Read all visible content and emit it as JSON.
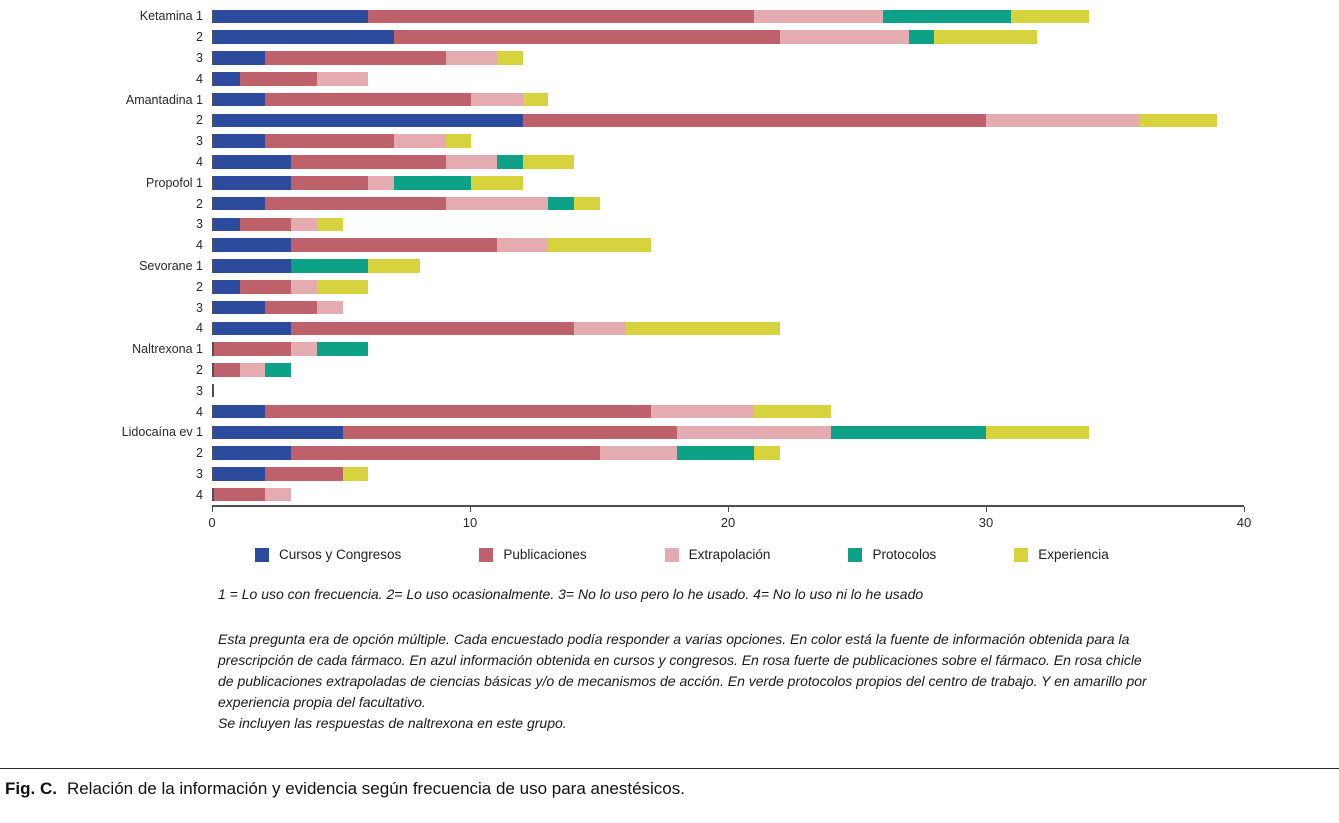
{
  "chart_data": {
    "type": "bar",
    "orientation": "horizontal",
    "stacked": true,
    "title": "",
    "xlabel": "",
    "ylabel": "",
    "xlim": [
      0,
      40
    ],
    "x_ticks": [
      0,
      10,
      20,
      30,
      40
    ],
    "grid": false,
    "legend_position": "bottom",
    "categories": [
      "Ketamina 1",
      "2",
      "3",
      "4",
      "Amantadina 1",
      "2",
      "3",
      "4",
      "Propofol 1",
      "2",
      "3",
      "4",
      "Sevorane 1",
      "2",
      "3",
      "4",
      "Naltrexona 1",
      "2",
      "3",
      "4",
      "Lidocaína ev 1",
      "2",
      "3",
      "4"
    ],
    "series": [
      {
        "key": "cursos-y-congresos",
        "name": "Cursos y Congresos",
        "color": "#2c4b9d",
        "values": [
          6,
          7,
          2,
          1,
          2,
          12,
          2,
          3,
          3,
          2,
          1,
          3,
          3,
          1,
          2,
          3,
          0,
          0,
          0,
          2,
          5,
          3,
          2,
          0
        ]
      },
      {
        "key": "publicaciones",
        "name": "Publicaciones",
        "color": "#bd626b",
        "values": [
          15,
          15,
          7,
          3,
          8,
          18,
          5,
          6,
          3,
          7,
          2,
          8,
          0,
          2,
          2,
          11,
          3,
          1,
          0,
          15,
          13,
          12,
          3,
          2
        ]
      },
      {
        "key": "extrapolacion",
        "name": "Extrapolación",
        "color": "#e4abb0",
        "values": [
          5,
          5,
          2,
          2,
          2,
          6,
          2,
          2,
          1,
          4,
          1,
          2,
          0,
          1,
          1,
          2,
          1,
          1,
          0,
          4,
          6,
          3,
          0,
          1
        ]
      },
      {
        "key": "protocolos",
        "name": "Protocolos",
        "color": "#0da287",
        "values": [
          5,
          1,
          0,
          0,
          0,
          0,
          0,
          1,
          3,
          1,
          0,
          0,
          3,
          0,
          0,
          0,
          2,
          1,
          0,
          0,
          6,
          3,
          0,
          0
        ]
      },
      {
        "key": "experiencia",
        "name": "Experiencia",
        "color": "#d6d33e",
        "values": [
          3,
          4,
          1,
          0,
          1,
          3,
          1,
          2,
          2,
          1,
          1,
          4,
          2,
          2,
          0,
          6,
          0,
          0,
          0,
          3,
          4,
          1,
          1,
          0
        ]
      }
    ]
  },
  "figure": {
    "scale_note": "1 = Lo uso con frecuencia. 2= Lo uso ocasionalmente. 3= No lo uso pero lo he usado. 4= No lo uso ni lo he usado",
    "method_note": "Esta pregunta era de opción múltiple. Cada encuestado podía responder a varias opciones. En color está la fuente de información obtenida para la prescripción de cada fármaco. En azul información obtenida en cursos y congresos. En rosa fuerte de publicaciones sobre el fármaco. En rosa chicle de publicaciones extrapoladas de ciencias básicas y/o de mecanismos de acción. En verde protocolos propios del centro de trabajo. Y en amarillo por experiencia propia del facultativo.",
    "inclusion_note": "Se incluyen las respuestas de naltrexona en este grupo.",
    "caption_label": "Fig. C.",
    "caption_text": "Relación de la información y evidencia según frecuencia de uso para anestésicos."
  }
}
